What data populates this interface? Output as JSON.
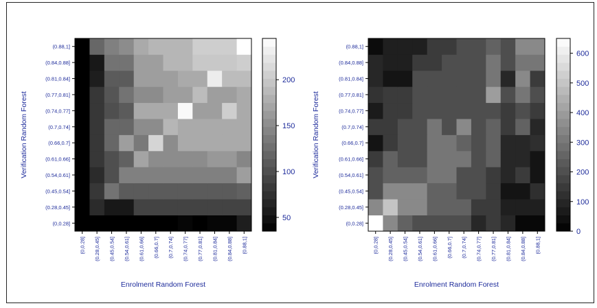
{
  "chart_data": [
    {
      "type": "heatmap",
      "xlabel": "Enrolment Random Forest",
      "ylabel": "Verification Random Forest",
      "x_categories": [
        "(0,0.28]",
        "(0.28,0.45]",
        "(0.45,0.54]",
        "(0.54,0.61]",
        "(0.61,0.66]",
        "(0.66,0.7]",
        "(0.7,0.74]",
        "(0.74,0.77]",
        "(0.77,0.81]",
        "(0.81,0.84]",
        "(0.84,0.88]",
        "(0.88,1]"
      ],
      "y_categories": [
        "(0,0.28]",
        "(0.28,0.45]",
        "(0.45,0.54]",
        "(0.54,0.61]",
        "(0.61,0.66]",
        "(0.66,0.7]",
        "(0.7,0.74]",
        "(0.74,0.77]",
        "(0.77,0.81]",
        "(0.81,0.84]",
        "(0.84,0.88]",
        "(0.88,1]"
      ],
      "colorbar_range": [
        35,
        245
      ],
      "colorbar_ticks": [
        50,
        100,
        150,
        200
      ],
      "colorscale": "black-to-white",
      "values": [
        [
          10,
          25,
          25,
          25,
          25,
          25,
          25,
          40,
          20,
          40,
          40,
          60
        ],
        [
          25,
          70,
          55,
          55,
          90,
          90,
          90,
          90,
          90,
          90,
          90,
          90
        ],
        [
          25,
          80,
          130,
          110,
          110,
          110,
          110,
          110,
          110,
          110,
          110,
          115
        ],
        [
          25,
          70,
          100,
          140,
          140,
          140,
          140,
          140,
          140,
          140,
          140,
          165
        ],
        [
          25,
          80,
          100,
          115,
          170,
          150,
          150,
          150,
          150,
          160,
          160,
          145
        ],
        [
          35,
          80,
          120,
          165,
          135,
          210,
          150,
          175,
          175,
          175,
          175,
          175
        ],
        [
          25,
          80,
          120,
          120,
          150,
          150,
          185,
          175,
          175,
          175,
          175,
          175
        ],
        [
          25,
          80,
          100,
          110,
          175,
          175,
          175,
          240,
          165,
          165,
          205,
          175
        ],
        [
          20,
          80,
          105,
          130,
          150,
          150,
          165,
          165,
          190,
          165,
          165,
          175
        ],
        [
          30,
          60,
          110,
          110,
          165,
          165,
          165,
          175,
          175,
          230,
          190,
          190
        ],
        [
          25,
          55,
          130,
          130,
          165,
          165,
          185,
          185,
          200,
          200,
          200,
          205
        ],
        [
          20,
          120,
          140,
          150,
          175,
          185,
          185,
          185,
          205,
          205,
          205,
          245
        ]
      ]
    },
    {
      "type": "heatmap",
      "xlabel": "Enrolment Random Forest",
      "ylabel": "Verification Random Forest",
      "x_categories": [
        "(0,0.28]",
        "(0.28,0.45]",
        "(0.45,0.54]",
        "(0.54,0.61]",
        "(0.61,0.66]",
        "(0.66,0.7]",
        "(0.7,0.74]",
        "(0.74,0.77]",
        "(0.77,0.81]",
        "(0.81,0.84]",
        "(0.84,0.88]",
        "(0.88,1]"
      ],
      "y_categories": [
        "(0,0.28]",
        "(0.28,0.45]",
        "(0.45,0.54]",
        "(0.54,0.61]",
        "(0.61,0.66]",
        "(0.66,0.7]",
        "(0.7,0.74]",
        "(0.74,0.77]",
        "(0.77,0.81]",
        "(0.81,0.84]",
        "(0.84,0.88]",
        "(0.88,1]"
      ],
      "colorbar_range": [
        0,
        650
      ],
      "colorbar_ticks": [
        0,
        100,
        200,
        300,
        400,
        500,
        600
      ],
      "colorscale": "black-to-white",
      "values": [
        [
          650,
          350,
          250,
          200,
          200,
          200,
          200,
          100,
          150,
          100,
          20,
          20
        ],
        [
          350,
          500,
          350,
          350,
          250,
          250,
          250,
          150,
          150,
          80,
          80,
          80
        ],
        [
          200,
          350,
          350,
          350,
          250,
          250,
          200,
          200,
          150,
          50,
          50,
          120
        ],
        [
          200,
          250,
          250,
          250,
          300,
          300,
          200,
          200,
          150,
          100,
          150,
          50
        ],
        [
          150,
          250,
          200,
          200,
          300,
          300,
          300,
          200,
          250,
          100,
          100,
          50
        ],
        [
          50,
          150,
          200,
          200,
          300,
          300,
          250,
          200,
          250,
          100,
          100,
          120
        ],
        [
          150,
          150,
          200,
          200,
          300,
          200,
          350,
          200,
          250,
          150,
          250,
          100
        ],
        [
          70,
          150,
          150,
          200,
          200,
          200,
          200,
          200,
          200,
          150,
          200,
          150
        ],
        [
          130,
          150,
          150,
          200,
          200,
          200,
          200,
          200,
          400,
          200,
          300,
          200
        ],
        [
          100,
          50,
          50,
          200,
          200,
          200,
          200,
          200,
          300,
          100,
          350,
          150
        ],
        [
          100,
          80,
          80,
          150,
          150,
          200,
          200,
          200,
          300,
          200,
          300,
          300
        ],
        [
          30,
          80,
          80,
          80,
          150,
          150,
          200,
          200,
          250,
          200,
          350,
          350
        ]
      ]
    }
  ]
}
